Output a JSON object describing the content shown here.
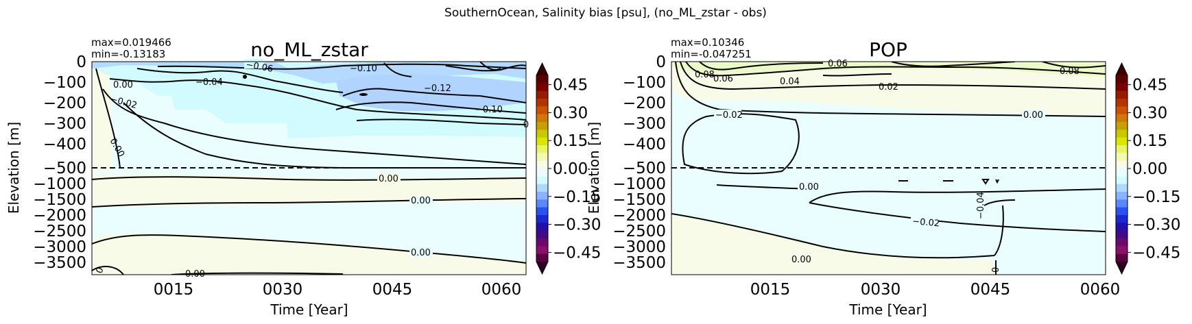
{
  "figure": {
    "suptitle": "SouthernOcean, Salinity bias [psu], (no_ML_zstar - obs)"
  },
  "colorbar": {
    "ticks": [
      "0.45",
      "0.30",
      "0.15",
      "0.00",
      "−0.15",
      "−0.30",
      "−0.45"
    ],
    "levels": [
      0.45,
      0.3,
      0.15,
      0.0,
      -0.15,
      -0.3,
      -0.45
    ],
    "colors": [
      "#5c0000",
      "#7a0000",
      "#9a1a00",
      "#b43300",
      "#c85400",
      "#d0760a",
      "#c4a000",
      "#c8c800",
      "#d8e600",
      "#e8f46a",
      "#f3fab4",
      "#f7fbe8",
      "#eafcff",
      "#d2fbff",
      "#b0d8ff",
      "#88b4ff",
      "#5a86ff",
      "#2a52f0",
      "#1a2ad0",
      "#2410a8",
      "#420a86",
      "#6a0a6e",
      "#8a106a",
      "#5a0040"
    ],
    "extend": "both"
  },
  "chart_data": [
    {
      "type": "heatmap",
      "title": "no_ML_zstar",
      "max_label": "max=0.019466",
      "min_label": "min=-0.13183",
      "xlabel": "Time [Year]",
      "ylabel": "Elevation [m]",
      "xticks": [
        "0015",
        "0030",
        "0045",
        "0060"
      ],
      "yticks": [
        "0",
        "−100",
        "−200",
        "−300",
        "−400",
        "−500",
        "−1000",
        "−1500",
        "−2000",
        "−2500",
        "−3000",
        "−3500"
      ],
      "split_depth": -500,
      "contour_labels": [
        "−0.06",
        "0.00",
        "−0.04",
        "−0.10",
        "−0.02",
        "−0.12",
        "−0.10",
        "−0",
        "0.00",
        "0.00",
        "0.00",
        "0.00",
        "0",
        "0.00"
      ]
    },
    {
      "type": "heatmap",
      "title": "POP",
      "max_label": "max=0.10346",
      "min_label": "min=-0.047251",
      "xlabel": "Time [Year]",
      "ylabel": "Elevation [m]",
      "xticks": [
        "0015",
        "0030",
        "0045",
        "0060"
      ],
      "yticks": [
        "0",
        "−100",
        "−200",
        "−300",
        "−400",
        "−500",
        "−1000",
        "−1500",
        "−2000",
        "−2500",
        "−3000",
        "−3500"
      ],
      "split_depth": -500,
      "contour_labels": [
        "0.06",
        "0.08",
        "0.08",
        "0.06",
        "0.04",
        "0.02",
        "−0.02",
        "0.00",
        "0.00",
        "−0.04",
        "−0.02",
        "0.00",
        "0"
      ]
    }
  ]
}
